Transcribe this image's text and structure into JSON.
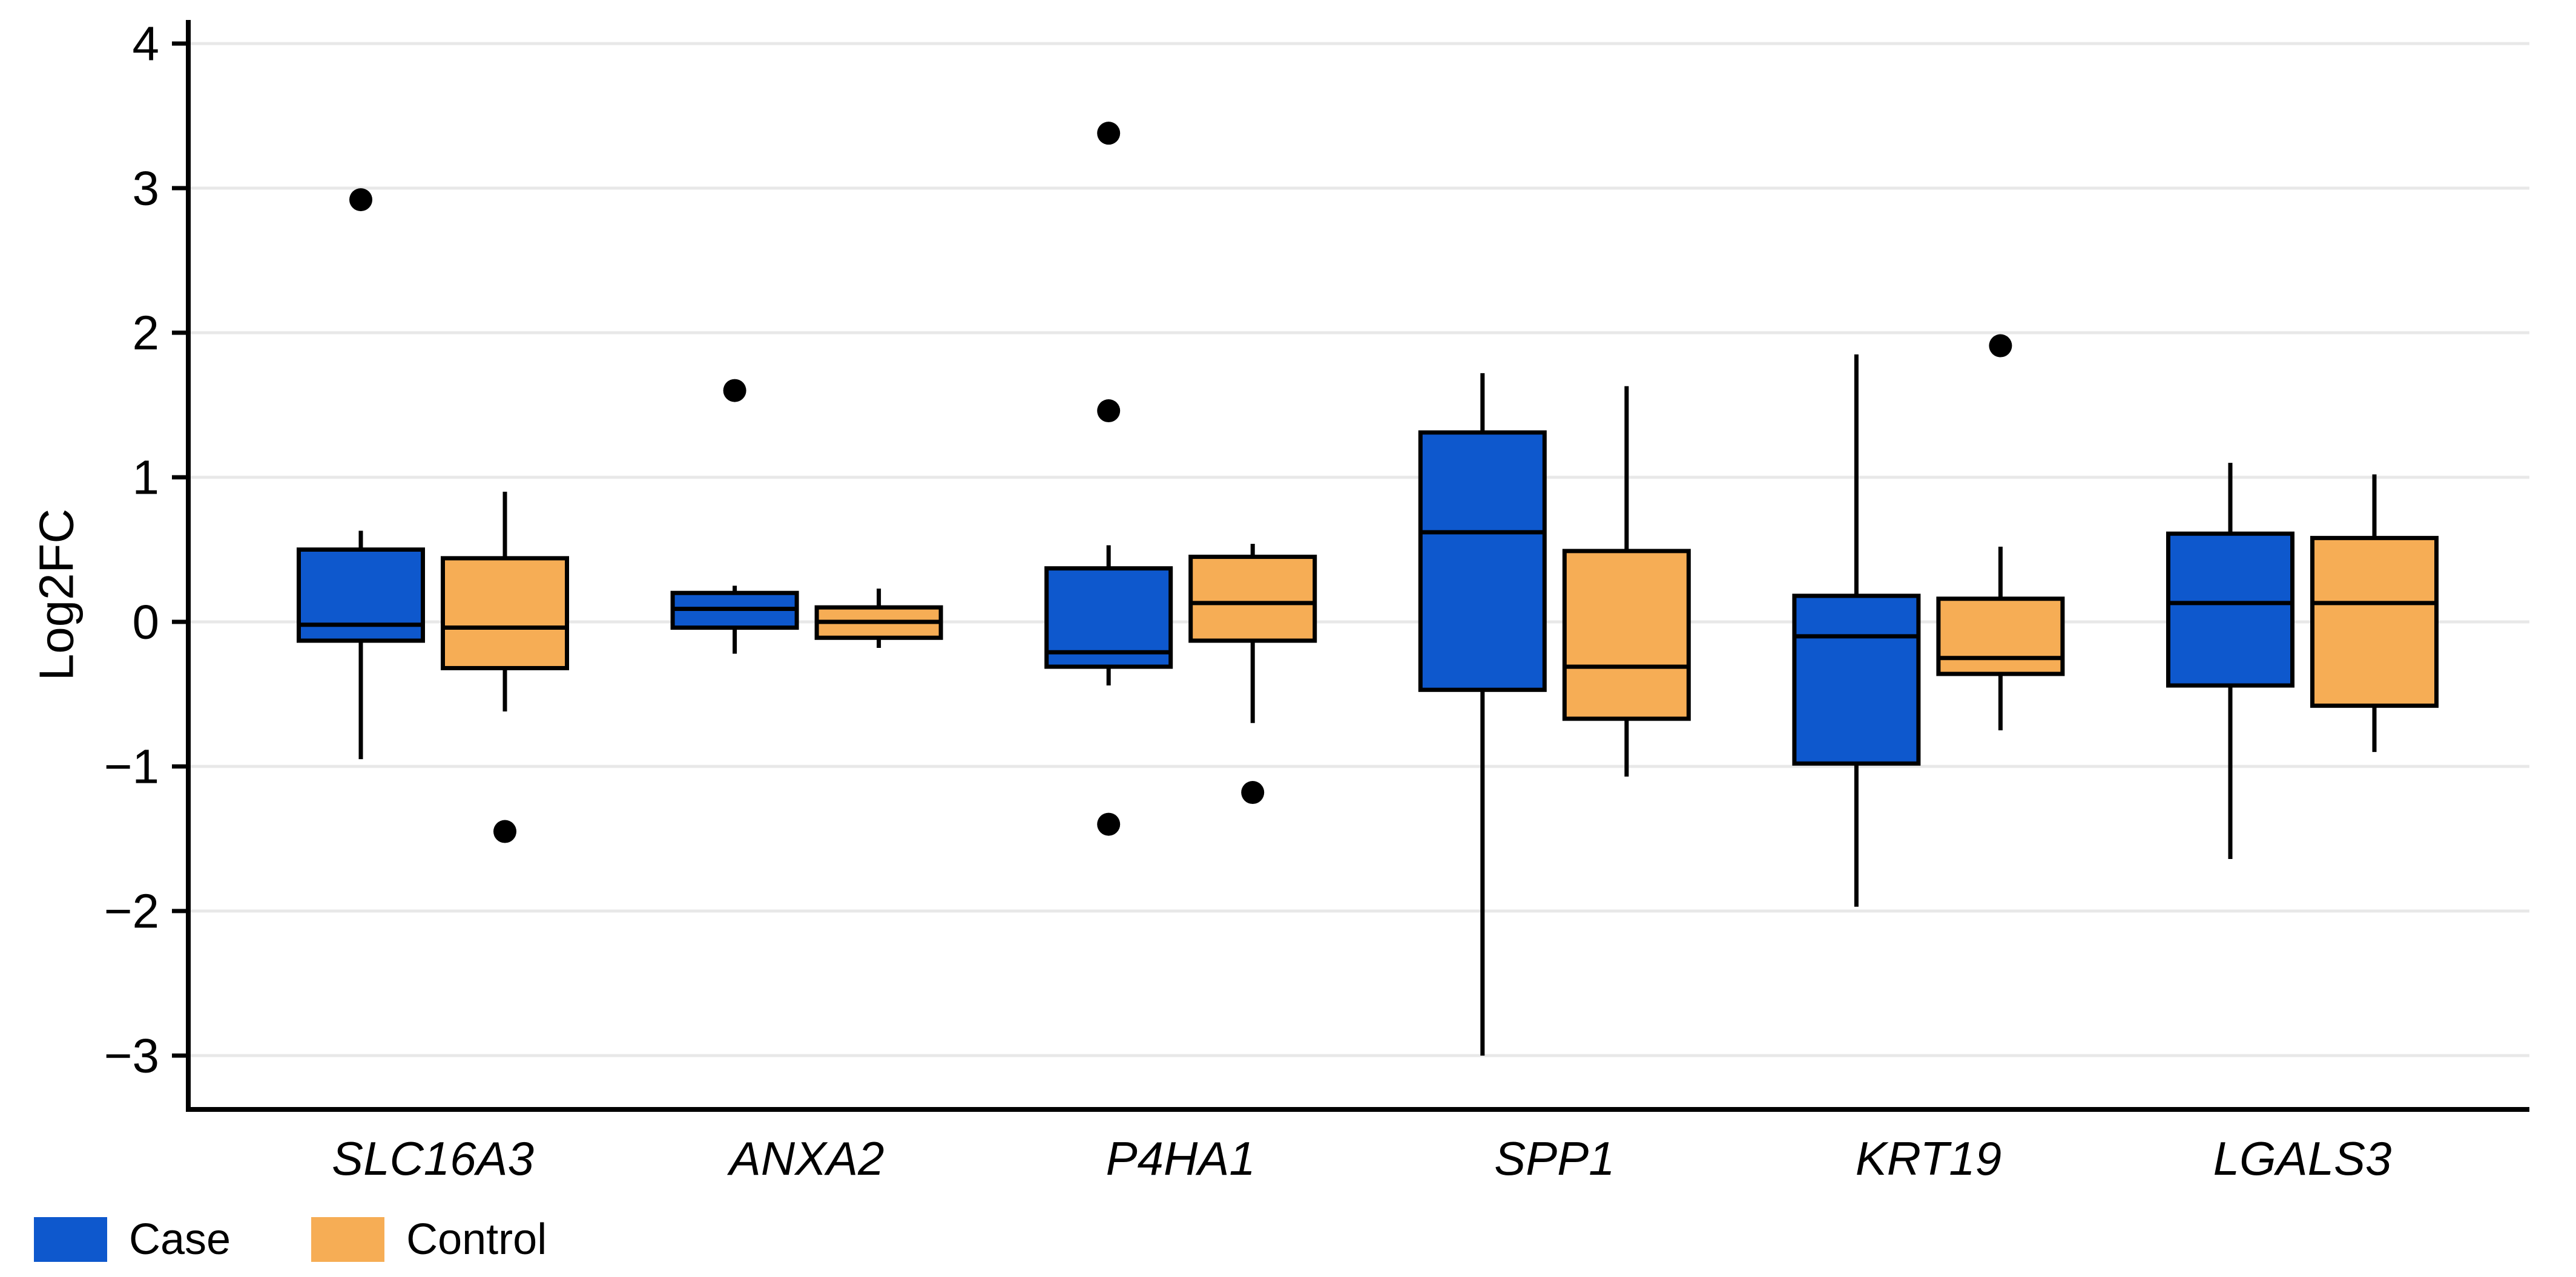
{
  "figure": {
    "background": "#ffffff"
  },
  "style": {
    "case_color": "#0E58CD",
    "control_color": "#F6AD55",
    "box_border_color": "#000000",
    "axis_color": "#000000",
    "grid_color": "#E8E8E8",
    "outlier_color": "#000000",
    "text_color": "#000000"
  },
  "legend": {
    "items": [
      {
        "label": "Case",
        "color": "#0E58CD"
      },
      {
        "label": "Control",
        "color": "#F6AD55"
      }
    ]
  },
  "chart_data": {
    "type": "boxplot",
    "title": "",
    "xlabel": "",
    "ylabel": "Log2FC",
    "grid": true,
    "legend_position": "bottom-left",
    "ylim": [
      -3.37,
      4.18
    ],
    "yticks": [
      4,
      3,
      2,
      1,
      0,
      -1,
      -2,
      -3
    ],
    "categories": [
      "SLC16A3",
      "ANXA2",
      "P4HA1",
      "SPP1",
      "KRT19",
      "LGALS3"
    ],
    "series": [
      {
        "name": "Case",
        "color": "#0E58CD",
        "boxes": [
          {
            "category": "SLC16A3",
            "whisker_low": -0.95,
            "q1": -0.13,
            "median": -0.02,
            "q3": 0.5,
            "whisker_high": 0.63,
            "outliers": [
              2.92
            ]
          },
          {
            "category": "ANXA2",
            "whisker_low": -0.22,
            "q1": -0.04,
            "median": 0.09,
            "q3": 0.2,
            "whisker_high": 0.25,
            "outliers": [
              1.6
            ]
          },
          {
            "category": "P4HA1",
            "whisker_low": -0.44,
            "q1": -0.31,
            "median": -0.21,
            "q3": 0.37,
            "whisker_high": 0.53,
            "outliers": [
              3.38,
              1.46,
              -1.4
            ]
          },
          {
            "category": "SPP1",
            "whisker_low": -3.0,
            "q1": -0.47,
            "median": 0.62,
            "q3": 1.31,
            "whisker_high": 1.72,
            "outliers": []
          },
          {
            "category": "KRT19",
            "whisker_low": -1.97,
            "q1": -0.98,
            "median": -0.1,
            "q3": 0.18,
            "whisker_high": 1.85,
            "outliers": []
          },
          {
            "category": "LGALS3",
            "whisker_low": -1.64,
            "q1": -0.44,
            "median": 0.13,
            "q3": 0.61,
            "whisker_high": 1.1,
            "outliers": []
          }
        ]
      },
      {
        "name": "Control",
        "color": "#F6AD55",
        "boxes": [
          {
            "category": "SLC16A3",
            "whisker_low": -0.62,
            "q1": -0.32,
            "median": -0.04,
            "q3": 0.44,
            "whisker_high": 0.9,
            "outliers": [
              -1.45
            ]
          },
          {
            "category": "ANXA2",
            "whisker_low": -0.18,
            "q1": -0.11,
            "median": 0.0,
            "q3": 0.1,
            "whisker_high": 0.23,
            "outliers": []
          },
          {
            "category": "P4HA1",
            "whisker_low": -0.7,
            "q1": -0.13,
            "median": 0.13,
            "q3": 0.45,
            "whisker_high": 0.54,
            "outliers": [
              -1.18
            ]
          },
          {
            "category": "SPP1",
            "whisker_low": -1.07,
            "q1": -0.67,
            "median": -0.31,
            "q3": 0.49,
            "whisker_high": 1.63,
            "outliers": []
          },
          {
            "category": "KRT19",
            "whisker_low": -0.75,
            "q1": -0.36,
            "median": -0.25,
            "q3": 0.16,
            "whisker_high": 0.52,
            "outliers": [
              1.91
            ]
          },
          {
            "category": "LGALS3",
            "whisker_low": -0.9,
            "q1": -0.58,
            "median": 0.13,
            "q3": 0.58,
            "whisker_high": 1.02,
            "outliers": []
          }
        ]
      }
    ]
  }
}
